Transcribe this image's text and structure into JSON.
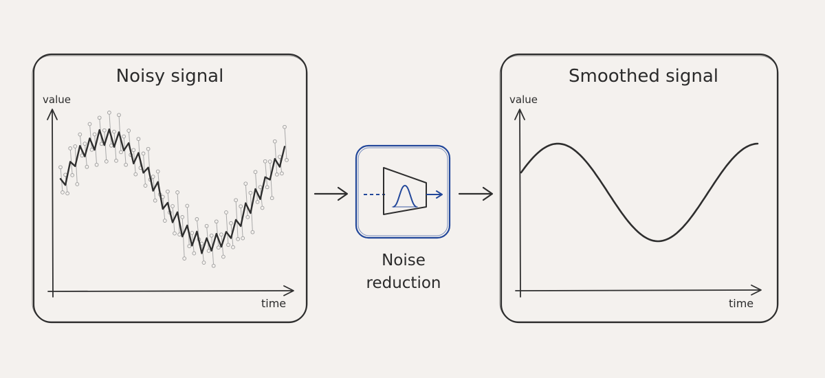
{
  "colors": {
    "background": "#f4f1ee",
    "ink": "#2e2e2e",
    "accent": "#22479a",
    "faint": "#9a9a9a"
  },
  "left_panel": {
    "title": "Noisy signal",
    "y_axis_label": "value",
    "x_axis_label": "time"
  },
  "filter_block": {
    "label_line1": "Noise",
    "label_line2": "reduction",
    "icon": "filter-funnel-gaussian-icon"
  },
  "right_panel": {
    "title": "Smoothed signal",
    "y_axis_label": "value",
    "x_axis_label": "time"
  }
}
